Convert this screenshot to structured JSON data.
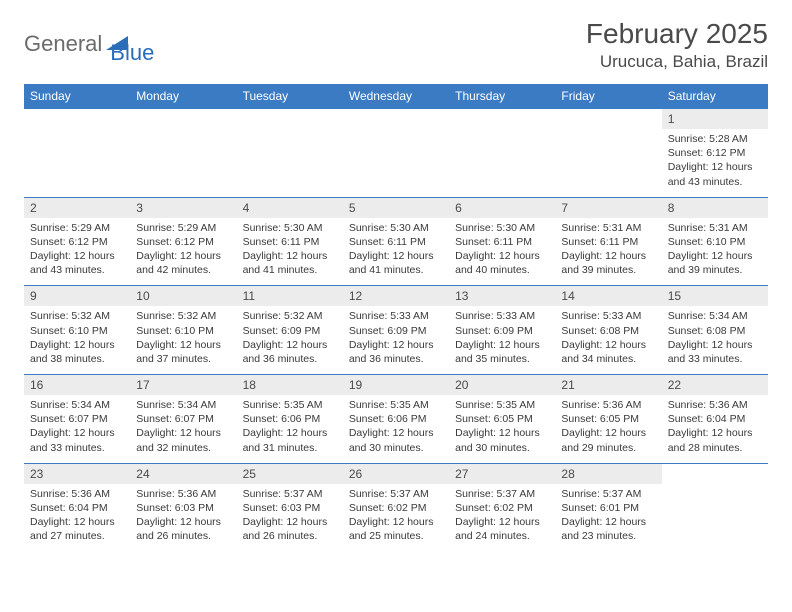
{
  "brand": {
    "part1": "General",
    "part2": "Blue"
  },
  "title": "February 2025",
  "location": "Urucuca, Bahia, Brazil",
  "colors": {
    "header_bg": "#3b7bc4",
    "header_text": "#ffffff",
    "daynum_bg": "#ececec",
    "border": "#3b7bc4",
    "body_text": "#333333",
    "brand_gray": "#6b6b6b",
    "brand_blue": "#2a6db8"
  },
  "day_names": [
    "Sunday",
    "Monday",
    "Tuesday",
    "Wednesday",
    "Thursday",
    "Friday",
    "Saturday"
  ],
  "weeks": [
    [
      {
        "n": "",
        "sunrise": "",
        "sunset": "",
        "daylight": ""
      },
      {
        "n": "",
        "sunrise": "",
        "sunset": "",
        "daylight": ""
      },
      {
        "n": "",
        "sunrise": "",
        "sunset": "",
        "daylight": ""
      },
      {
        "n": "",
        "sunrise": "",
        "sunset": "",
        "daylight": ""
      },
      {
        "n": "",
        "sunrise": "",
        "sunset": "",
        "daylight": ""
      },
      {
        "n": "",
        "sunrise": "",
        "sunset": "",
        "daylight": ""
      },
      {
        "n": "1",
        "sunrise": "Sunrise: 5:28 AM",
        "sunset": "Sunset: 6:12 PM",
        "daylight": "Daylight: 12 hours and 43 minutes."
      }
    ],
    [
      {
        "n": "2",
        "sunrise": "Sunrise: 5:29 AM",
        "sunset": "Sunset: 6:12 PM",
        "daylight": "Daylight: 12 hours and 43 minutes."
      },
      {
        "n": "3",
        "sunrise": "Sunrise: 5:29 AM",
        "sunset": "Sunset: 6:12 PM",
        "daylight": "Daylight: 12 hours and 42 minutes."
      },
      {
        "n": "4",
        "sunrise": "Sunrise: 5:30 AM",
        "sunset": "Sunset: 6:11 PM",
        "daylight": "Daylight: 12 hours and 41 minutes."
      },
      {
        "n": "5",
        "sunrise": "Sunrise: 5:30 AM",
        "sunset": "Sunset: 6:11 PM",
        "daylight": "Daylight: 12 hours and 41 minutes."
      },
      {
        "n": "6",
        "sunrise": "Sunrise: 5:30 AM",
        "sunset": "Sunset: 6:11 PM",
        "daylight": "Daylight: 12 hours and 40 minutes."
      },
      {
        "n": "7",
        "sunrise": "Sunrise: 5:31 AM",
        "sunset": "Sunset: 6:11 PM",
        "daylight": "Daylight: 12 hours and 39 minutes."
      },
      {
        "n": "8",
        "sunrise": "Sunrise: 5:31 AM",
        "sunset": "Sunset: 6:10 PM",
        "daylight": "Daylight: 12 hours and 39 minutes."
      }
    ],
    [
      {
        "n": "9",
        "sunrise": "Sunrise: 5:32 AM",
        "sunset": "Sunset: 6:10 PM",
        "daylight": "Daylight: 12 hours and 38 minutes."
      },
      {
        "n": "10",
        "sunrise": "Sunrise: 5:32 AM",
        "sunset": "Sunset: 6:10 PM",
        "daylight": "Daylight: 12 hours and 37 minutes."
      },
      {
        "n": "11",
        "sunrise": "Sunrise: 5:32 AM",
        "sunset": "Sunset: 6:09 PM",
        "daylight": "Daylight: 12 hours and 36 minutes."
      },
      {
        "n": "12",
        "sunrise": "Sunrise: 5:33 AM",
        "sunset": "Sunset: 6:09 PM",
        "daylight": "Daylight: 12 hours and 36 minutes."
      },
      {
        "n": "13",
        "sunrise": "Sunrise: 5:33 AM",
        "sunset": "Sunset: 6:09 PM",
        "daylight": "Daylight: 12 hours and 35 minutes."
      },
      {
        "n": "14",
        "sunrise": "Sunrise: 5:33 AM",
        "sunset": "Sunset: 6:08 PM",
        "daylight": "Daylight: 12 hours and 34 minutes."
      },
      {
        "n": "15",
        "sunrise": "Sunrise: 5:34 AM",
        "sunset": "Sunset: 6:08 PM",
        "daylight": "Daylight: 12 hours and 33 minutes."
      }
    ],
    [
      {
        "n": "16",
        "sunrise": "Sunrise: 5:34 AM",
        "sunset": "Sunset: 6:07 PM",
        "daylight": "Daylight: 12 hours and 33 minutes."
      },
      {
        "n": "17",
        "sunrise": "Sunrise: 5:34 AM",
        "sunset": "Sunset: 6:07 PM",
        "daylight": "Daylight: 12 hours and 32 minutes."
      },
      {
        "n": "18",
        "sunrise": "Sunrise: 5:35 AM",
        "sunset": "Sunset: 6:06 PM",
        "daylight": "Daylight: 12 hours and 31 minutes."
      },
      {
        "n": "19",
        "sunrise": "Sunrise: 5:35 AM",
        "sunset": "Sunset: 6:06 PM",
        "daylight": "Daylight: 12 hours and 30 minutes."
      },
      {
        "n": "20",
        "sunrise": "Sunrise: 5:35 AM",
        "sunset": "Sunset: 6:05 PM",
        "daylight": "Daylight: 12 hours and 30 minutes."
      },
      {
        "n": "21",
        "sunrise": "Sunrise: 5:36 AM",
        "sunset": "Sunset: 6:05 PM",
        "daylight": "Daylight: 12 hours and 29 minutes."
      },
      {
        "n": "22",
        "sunrise": "Sunrise: 5:36 AM",
        "sunset": "Sunset: 6:04 PM",
        "daylight": "Daylight: 12 hours and 28 minutes."
      }
    ],
    [
      {
        "n": "23",
        "sunrise": "Sunrise: 5:36 AM",
        "sunset": "Sunset: 6:04 PM",
        "daylight": "Daylight: 12 hours and 27 minutes."
      },
      {
        "n": "24",
        "sunrise": "Sunrise: 5:36 AM",
        "sunset": "Sunset: 6:03 PM",
        "daylight": "Daylight: 12 hours and 26 minutes."
      },
      {
        "n": "25",
        "sunrise": "Sunrise: 5:37 AM",
        "sunset": "Sunset: 6:03 PM",
        "daylight": "Daylight: 12 hours and 26 minutes."
      },
      {
        "n": "26",
        "sunrise": "Sunrise: 5:37 AM",
        "sunset": "Sunset: 6:02 PM",
        "daylight": "Daylight: 12 hours and 25 minutes."
      },
      {
        "n": "27",
        "sunrise": "Sunrise: 5:37 AM",
        "sunset": "Sunset: 6:02 PM",
        "daylight": "Daylight: 12 hours and 24 minutes."
      },
      {
        "n": "28",
        "sunrise": "Sunrise: 5:37 AM",
        "sunset": "Sunset: 6:01 PM",
        "daylight": "Daylight: 12 hours and 23 minutes."
      },
      {
        "n": "",
        "sunrise": "",
        "sunset": "",
        "daylight": ""
      }
    ]
  ]
}
